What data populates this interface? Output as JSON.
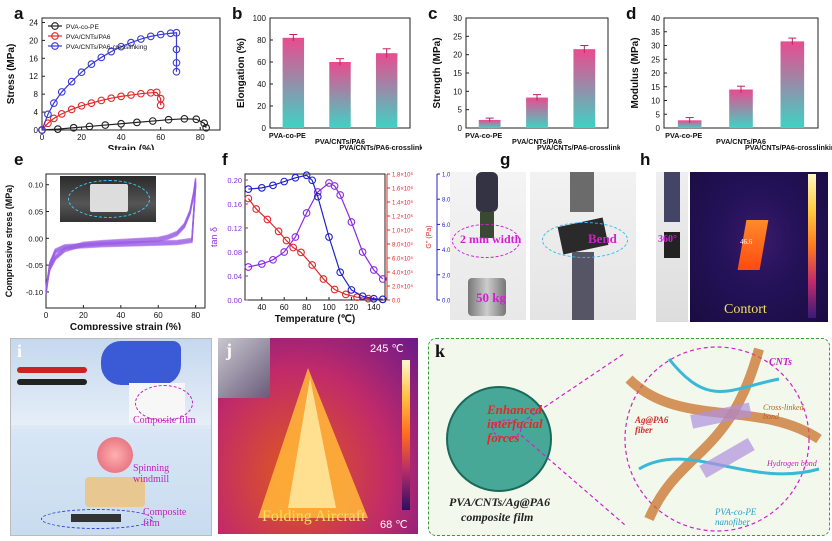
{
  "labels": {
    "a": "a",
    "b": "b",
    "c": "c",
    "d": "d",
    "e": "e",
    "f": "f",
    "g": "g",
    "h": "h",
    "i": "i",
    "j": "j",
    "k": "k"
  },
  "colors": {
    "pva": "#222222",
    "cnts": "#e02a2a",
    "cross": "#3a3ad6",
    "bar_top": "#e94b8f",
    "bar_bottom": "#3fd2c4",
    "tan": "#8a2be2",
    "Gpp": "#e02a2a",
    "Gp": "#2222cc"
  },
  "chart_data": [
    {
      "id": "a",
      "type": "line",
      "xlabel": "Strain (%)",
      "ylabel": "Stress (MPa)",
      "xlim": [
        0,
        90
      ],
      "ylim": [
        0,
        25
      ],
      "xticks": [
        0,
        20,
        40,
        60,
        80
      ],
      "yticks": [
        0,
        4,
        8,
        12,
        16,
        20,
        24
      ],
      "legend": "top-left",
      "series": [
        {
          "name": "PVA-co-PE",
          "color": "#222222",
          "x": [
            0,
            8,
            16,
            24,
            32,
            40,
            48,
            56,
            64,
            72,
            78,
            82,
            83
          ],
          "y": [
            0,
            0.2,
            0.5,
            0.8,
            1.1,
            1.4,
            1.7,
            2.0,
            2.3,
            2.5,
            2.4,
            1.5,
            0.5
          ]
        },
        {
          "name": "PVA/CNTs/PA6",
          "color": "#e02a2a",
          "x": [
            0,
            3,
            6,
            10,
            15,
            20,
            25,
            30,
            35,
            40,
            45,
            50,
            55,
            58,
            60,
            60
          ],
          "y": [
            0,
            1.5,
            2.6,
            3.6,
            4.6,
            5.4,
            6.0,
            6.6,
            7.1,
            7.5,
            7.8,
            8.1,
            8.3,
            8.4,
            7.0,
            5.5
          ]
        },
        {
          "name": "PVA/CNTs/PA6-crosslinking",
          "color": "#3a3ad6",
          "x": [
            0,
            3,
            6,
            10,
            15,
            20,
            25,
            30,
            35,
            40,
            45,
            50,
            55,
            60,
            65,
            68,
            68,
            68,
            68
          ],
          "y": [
            0,
            3.5,
            6.0,
            8.5,
            10.8,
            12.9,
            14.7,
            16.2,
            17.5,
            18.6,
            19.5,
            20.3,
            20.9,
            21.3,
            21.6,
            21.7,
            18,
            15,
            13
          ]
        }
      ]
    },
    {
      "id": "b",
      "type": "bar",
      "ylabel": "Elongation (%)",
      "ylim": [
        0,
        100
      ],
      "yticks": [
        0,
        20,
        40,
        60,
        80,
        100
      ],
      "categories": [
        "PVA-co-PE",
        "PVA/CNTs/PA6",
        "PVA/CNTs/PA6-crosslinking"
      ],
      "values": [
        82,
        60,
        68
      ],
      "errors": [
        3,
        3,
        4
      ]
    },
    {
      "id": "c",
      "type": "bar",
      "ylabel": "Strength (MPa)",
      "ylim": [
        0,
        30
      ],
      "yticks": [
        0,
        5,
        10,
        15,
        20,
        25,
        30
      ],
      "categories": [
        "PVA-co-PE",
        "PVA/CNTs/PA6",
        "PVA/CNTs/PA6-crosslinking"
      ],
      "values": [
        2.2,
        8.3,
        21.5
      ],
      "errors": [
        0.5,
        0.8,
        1.0
      ]
    },
    {
      "id": "d",
      "type": "bar",
      "ylabel": "Modulus (MPa)",
      "ylim": [
        0,
        40
      ],
      "yticks": [
        0,
        5,
        10,
        15,
        20,
        25,
        30,
        35,
        40
      ],
      "categories": [
        "PVA-co-PE",
        "PVA/CNTs/PA6",
        "PVA/CNTs/PA6-crosslinking"
      ],
      "values": [
        2.8,
        14,
        31.5
      ],
      "errors": [
        1,
        1.2,
        1.2
      ]
    },
    {
      "id": "e",
      "type": "line",
      "xlabel": "Compressive strain (%)",
      "ylabel": "Compressive stress (MPa)",
      "xlim": [
        0,
        85
      ],
      "ylim": [
        -0.13,
        0.12
      ],
      "xticks": [
        0,
        20,
        40,
        60,
        80
      ],
      "yticks": [
        -0.1,
        -0.05,
        0.0,
        0.05,
        0.1
      ],
      "series": [
        {
          "name": "loading",
          "color": "#9b5de5",
          "x": [
            0,
            2,
            5,
            10,
            20,
            30,
            40,
            50,
            60,
            65,
            70,
            74,
            77,
            79,
            80
          ],
          "y": [
            -0.098,
            -0.06,
            -0.04,
            -0.025,
            -0.015,
            -0.012,
            -0.01,
            -0.008,
            -0.006,
            -0.002,
            0.005,
            0.02,
            0.045,
            0.08,
            0.105
          ]
        },
        {
          "name": "unloading",
          "color": "#9b5de5",
          "x": [
            80,
            78,
            70,
            50,
            30,
            10,
            5,
            2,
            0
          ],
          "y": [
            0.105,
            0.0,
            -0.004,
            -0.006,
            -0.008,
            -0.012,
            -0.02,
            -0.045,
            -0.098
          ]
        }
      ]
    },
    {
      "id": "f",
      "type": "line",
      "xlabel": "Temperature (℃)",
      "ylabel_left": "tan δ",
      "ylabel_mid": "G'' (Pa)",
      "ylabel_right": "G' (Pa)",
      "xlim": [
        25,
        150
      ],
      "xticks": [
        40,
        60,
        80,
        100,
        120,
        140
      ],
      "ylim_left": [
        0,
        0.21
      ],
      "yticks_left": [
        0.0,
        0.04,
        0.08,
        0.12,
        0.16,
        0.2
      ],
      "ylim_mid": [
        0,
        1800000.0
      ],
      "yticks_mid": [
        "0.0",
        "2.0×10⁵",
        "4.0×10⁵",
        "6.0×10⁵",
        "8.0×10⁵",
        "1.0×10⁶",
        "1.2×10⁶",
        "1.4×10⁶",
        "1.6×10⁶",
        "1.8×10⁶"
      ],
      "ylim_right": [
        0,
        10000000.0
      ],
      "yticks_right": [
        "0.0",
        "2.0×10⁶",
        "4.0×10⁶",
        "6.0×10⁶",
        "8.0×10⁶",
        "1.0×10⁷"
      ],
      "series": [
        {
          "name": "tan δ",
          "axis": "left",
          "color": "#8a2be2",
          "x": [
            28,
            40,
            50,
            60,
            70,
            80,
            90,
            100,
            105,
            110,
            120,
            130,
            140,
            148
          ],
          "y": [
            0.055,
            0.06,
            0.067,
            0.08,
            0.105,
            0.145,
            0.18,
            0.195,
            0.19,
            0.175,
            0.13,
            0.08,
            0.05,
            0.035
          ]
        },
        {
          "name": "G''",
          "axis": "mid",
          "color": "#e02a2a",
          "x": [
            28,
            35,
            45,
            55,
            62,
            68,
            75,
            85,
            95,
            105,
            115,
            125,
            135,
            148
          ],
          "y": [
            1450000.0,
            1300000.0,
            1150000.0,
            980000.0,
            850000.0,
            750000.0,
            680000.0,
            500000.0,
            300000.0,
            150000.0,
            80000.0,
            40000.0,
            20000.0,
            10000.0
          ]
        },
        {
          "name": "G'",
          "axis": "right",
          "color": "#2222cc",
          "x": [
            28,
            40,
            50,
            60,
            70,
            80,
            85,
            90,
            100,
            110,
            120,
            130,
            140,
            148
          ],
          "y": [
            8800000.0,
            8900000.0,
            9100000.0,
            9400000.0,
            9700000.0,
            9900000.0,
            9500000.0,
            8200000.0,
            5000000.0,
            2200000.0,
            800000.0,
            300000.0,
            100000.0,
            50000.0
          ]
        }
      ]
    }
  ],
  "photos": {
    "g_width_label": "2 mm width",
    "g_weight_label": "50 kg",
    "g_bend_label": "Bend",
    "h_angle_label": "360°",
    "h_temp_label": "46.6",
    "h_contort_label": "Contort",
    "i_film_label": "Composite film",
    "i_windmill_label": "Spinning windmill",
    "i_film2_label": "Composite film",
    "j_max_label": "245 ℃",
    "j_min_label": "68 ℃",
    "j_caption": "Folding Aircraft",
    "k_center_label": "Enhanced interfacial forces",
    "k_title_line1": "PVA/CNTs/Ag@PA6",
    "k_title_line2": "composite film",
    "k_cnts": "CNTs",
    "k_crosslinked": "Cross-linked bond",
    "k_agpa6": "Ag@PA6 fiber",
    "k_hydrogen": "Hydrogen bond",
    "k_pvape": "PVA-co-PE nanofiber"
  }
}
